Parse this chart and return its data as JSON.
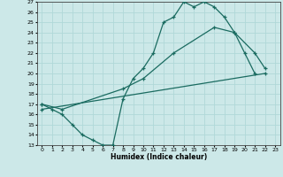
{
  "xlabel": "Humidex (Indice chaleur)",
  "background_color": "#cce8e8",
  "line_color": "#1a6b60",
  "grid_color": "#b0d8d8",
  "xlim": [
    -0.5,
    23.5
  ],
  "ylim": [
    13,
    27
  ],
  "yticks": [
    13,
    14,
    15,
    16,
    17,
    18,
    19,
    20,
    21,
    22,
    23,
    24,
    25,
    26,
    27
  ],
  "xticks": [
    0,
    1,
    2,
    3,
    4,
    5,
    6,
    7,
    8,
    9,
    10,
    11,
    12,
    13,
    14,
    15,
    16,
    17,
    18,
    19,
    20,
    21,
    22,
    23
  ],
  "line1_x": [
    0,
    1,
    2,
    3,
    4,
    5,
    6,
    7,
    8,
    9,
    10,
    11,
    12,
    13,
    14,
    15,
    16,
    17,
    18,
    19,
    20,
    21
  ],
  "line1_y": [
    17.0,
    16.5,
    16.0,
    15.0,
    14.0,
    13.5,
    13.0,
    13.0,
    17.5,
    19.5,
    20.5,
    22.0,
    25.0,
    25.5,
    27.0,
    26.5,
    27.0,
    26.5,
    25.5,
    24.0,
    22.0,
    20.0
  ],
  "line2_x": [
    0,
    2,
    8,
    10,
    13,
    17,
    19,
    21,
    22
  ],
  "line2_y": [
    17.0,
    16.5,
    18.5,
    19.5,
    22.0,
    24.5,
    24.0,
    22.0,
    20.5
  ],
  "line3_x": [
    0,
    22
  ],
  "line3_y": [
    16.5,
    20.0
  ]
}
